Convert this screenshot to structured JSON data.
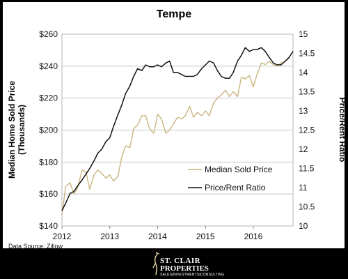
{
  "chart_data": {
    "type": "line",
    "title": "Tempe",
    "y_left_label": [
      "Median Home Sold Price",
      "(Thousands)"
    ],
    "y_right_label": "Price/Rent Ratio",
    "x_ticks": [
      "2012",
      "2013",
      "2014",
      "2015",
      "2016"
    ],
    "y_left_ticks": [
      "$140",
      "$160",
      "$180",
      "$200",
      "$220",
      "$240",
      "$260"
    ],
    "y_right_ticks": [
      "10",
      "10.5",
      "11",
      "11.5",
      "12",
      "12.5",
      "13",
      "13.5",
      "14",
      "14.5",
      "15"
    ],
    "x_range": [
      2012,
      2016.83
    ],
    "y_left_range": [
      140,
      260
    ],
    "y_right_range": [
      10,
      15
    ],
    "grid": "horizontal",
    "legend_position": "lower-right",
    "series": [
      {
        "name": "Median Sold Price",
        "axis": "left",
        "color": "#C9B57E",
        "x": [
          2012.0,
          2012.08,
          2012.17,
          2012.25,
          2012.33,
          2012.42,
          2012.5,
          2012.58,
          2012.67,
          2012.75,
          2012.83,
          2012.92,
          2013.0,
          2013.08,
          2013.17,
          2013.25,
          2013.33,
          2013.42,
          2013.5,
          2013.58,
          2013.67,
          2013.75,
          2013.83,
          2013.92,
          2014.0,
          2014.08,
          2014.17,
          2014.25,
          2014.33,
          2014.42,
          2014.5,
          2014.58,
          2014.67,
          2014.75,
          2014.83,
          2014.92,
          2015.0,
          2015.08,
          2015.17,
          2015.25,
          2015.33,
          2015.42,
          2015.5,
          2015.58,
          2015.67,
          2015.75,
          2015.83,
          2015.92,
          2016.0,
          2016.08,
          2016.17,
          2016.25,
          2016.33,
          2016.42,
          2016.5,
          2016.58,
          2016.67,
          2016.75
        ],
        "values": [
          147,
          165,
          167,
          160,
          164,
          175,
          174,
          163,
          172,
          175,
          173,
          170,
          172,
          168,
          171,
          183,
          190,
          189,
          201,
          203,
          209,
          209,
          201,
          198,
          210,
          207,
          198,
          200,
          204,
          208,
          207,
          209,
          215,
          208,
          211,
          209,
          212,
          209,
          217,
          220,
          222,
          225,
          221,
          224,
          221,
          233,
          232,
          234,
          227,
          235,
          242,
          241,
          243,
          241,
          240,
          242,
          243,
          245
        ]
      },
      {
        "name": "Price/Rent Ratio",
        "axis": "right",
        "color": "#111111",
        "x": [
          2012.0,
          2012.08,
          2012.17,
          2012.25,
          2012.33,
          2012.42,
          2012.5,
          2012.58,
          2012.67,
          2012.75,
          2012.83,
          2012.92,
          2013.0,
          2013.08,
          2013.17,
          2013.25,
          2013.33,
          2013.42,
          2013.5,
          2013.58,
          2013.67,
          2013.75,
          2013.83,
          2013.92,
          2014.0,
          2014.08,
          2014.17,
          2014.25,
          2014.33,
          2014.42,
          2014.5,
          2014.58,
          2014.67,
          2014.75,
          2014.83,
          2014.92,
          2015.0,
          2015.08,
          2015.17,
          2015.25,
          2015.33,
          2015.42,
          2015.5,
          2015.58,
          2015.67,
          2015.75,
          2015.83,
          2015.92,
          2016.0,
          2016.08,
          2016.17,
          2016.25,
          2016.33,
          2016.42,
          2016.5,
          2016.58,
          2016.67,
          2016.75,
          2016.83
        ],
        "values": [
          10.4,
          10.6,
          10.85,
          10.9,
          11.05,
          11.2,
          11.35,
          11.5,
          11.7,
          11.9,
          12.0,
          12.2,
          12.3,
          12.6,
          12.9,
          13.15,
          13.45,
          13.65,
          13.9,
          14.1,
          14.05,
          14.2,
          14.15,
          14.15,
          14.2,
          14.15,
          14.25,
          14.3,
          14.0,
          14.0,
          13.95,
          13.9,
          13.9,
          13.9,
          13.95,
          14.1,
          14.2,
          14.3,
          14.25,
          14.05,
          13.9,
          13.85,
          13.85,
          14.0,
          14.3,
          14.45,
          14.65,
          14.55,
          14.6,
          14.6,
          14.65,
          14.55,
          14.4,
          14.25,
          14.2,
          14.2,
          14.3,
          14.4,
          14.55
        ]
      }
    ],
    "source": "Data Source: Zillow"
  },
  "logo": {
    "line1": "ST. CLAIR",
    "line2": "PROPERTIES",
    "line3": "SALES|INVESTMENTS|CONSULTING"
  }
}
